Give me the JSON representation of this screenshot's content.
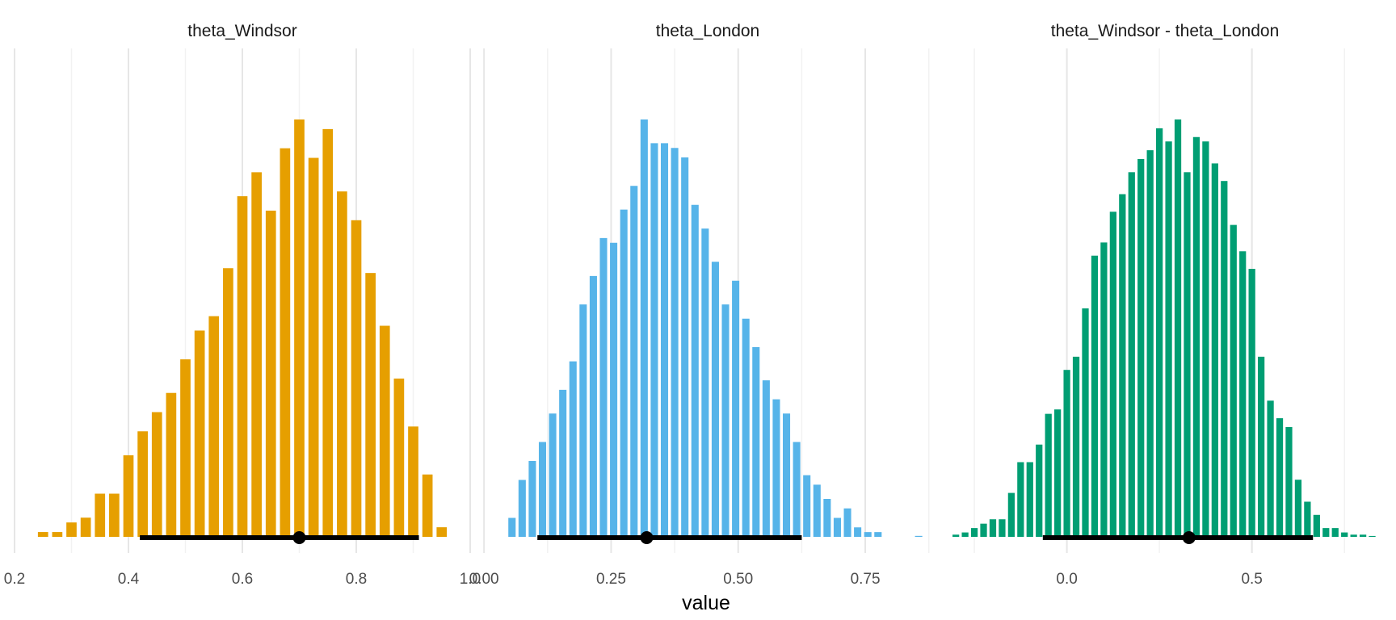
{
  "figure": {
    "xlabel": "value"
  },
  "chart_data": [
    {
      "type": "bar",
      "title": "theta_Windsor",
      "color": "#E69F00",
      "xlim": [
        0.2,
        1.0
      ],
      "xticks": [
        0.2,
        0.4,
        0.6,
        0.8,
        1.0
      ],
      "xtick_labels": [
        "0.2",
        "0.4",
        "0.6",
        "0.8",
        "1.0"
      ],
      "grid": true,
      "x": [
        0.25,
        0.275,
        0.3,
        0.325,
        0.35,
        0.375,
        0.4,
        0.425,
        0.45,
        0.475,
        0.5,
        0.525,
        0.55,
        0.575,
        0.6,
        0.625,
        0.65,
        0.675,
        0.7,
        0.725,
        0.75,
        0.775,
        0.8,
        0.825,
        0.85,
        0.875,
        0.9,
        0.925,
        0.95
      ],
      "values": [
        1,
        1,
        3,
        4,
        9,
        9,
        17,
        22,
        26,
        30,
        37,
        43,
        46,
        56,
        71,
        76,
        68,
        81,
        87,
        79,
        85,
        72,
        66,
        55,
        44,
        33,
        23,
        13,
        2
      ],
      "point_estimate": 0.7,
      "interval": [
        0.42,
        0.91
      ]
    },
    {
      "type": "bar",
      "title": "theta_London",
      "color": "#56B4E9",
      "xlim": [
        -0.005,
        0.885
      ],
      "xticks": [
        0.0,
        0.25,
        0.5,
        0.75
      ],
      "xtick_labels": [
        "0.00",
        "0.25",
        "0.50",
        "0.75"
      ],
      "grid": true,
      "x": [
        0.055,
        0.075,
        0.095,
        0.115,
        0.135,
        0.155,
        0.175,
        0.195,
        0.215,
        0.235,
        0.255,
        0.275,
        0.295,
        0.315,
        0.335,
        0.355,
        0.375,
        0.395,
        0.415,
        0.435,
        0.455,
        0.475,
        0.495,
        0.515,
        0.535,
        0.555,
        0.575,
        0.595,
        0.615,
        0.635,
        0.655,
        0.675,
        0.695,
        0.715,
        0.735,
        0.755,
        0.775,
        0.855
      ],
      "values": [
        4,
        12,
        16,
        20,
        26,
        31,
        37,
        49,
        55,
        63,
        62,
        69,
        74,
        88,
        83,
        83,
        82,
        80,
        70,
        65,
        58,
        49,
        54,
        46,
        40,
        33,
        29,
        26,
        20,
        13,
        11,
        8,
        4,
        6,
        2,
        1,
        1,
        0.2
      ],
      "point_estimate": 0.32,
      "interval": [
        0.105,
        0.625
      ]
    },
    {
      "type": "bar",
      "title": "theta_Windsor - theta_London",
      "color": "#009E73",
      "xlim": [
        -0.32,
        0.85
      ],
      "xticks": [
        0.0,
        0.5
      ],
      "xtick_labels": [
        "0.0",
        "0.5"
      ],
      "grid": true,
      "x": [
        -0.3,
        -0.275,
        -0.25,
        -0.225,
        -0.2,
        -0.175,
        -0.15,
        -0.125,
        -0.1,
        -0.075,
        -0.05,
        -0.025,
        0.0,
        0.025,
        0.05,
        0.075,
        0.1,
        0.125,
        0.15,
        0.175,
        0.2,
        0.225,
        0.25,
        0.275,
        0.3,
        0.325,
        0.35,
        0.375,
        0.4,
        0.425,
        0.45,
        0.475,
        0.5,
        0.525,
        0.55,
        0.575,
        0.6,
        0.625,
        0.65,
        0.675,
        0.7,
        0.725,
        0.75,
        0.775,
        0.8,
        0.825
      ],
      "values": [
        0.5,
        1,
        2,
        3,
        4,
        4,
        10,
        17,
        17,
        21,
        28,
        29,
        38,
        41,
        52,
        64,
        67,
        74,
        78,
        83,
        86,
        88,
        93,
        90,
        95,
        83,
        91,
        90,
        85,
        81,
        71,
        65,
        61,
        41,
        31,
        27,
        25,
        13,
        8,
        5,
        2,
        2,
        1,
        0.5,
        0.5,
        0.2
      ],
      "point_estimate": 0.33,
      "interval": [
        -0.065,
        0.665
      ]
    }
  ]
}
